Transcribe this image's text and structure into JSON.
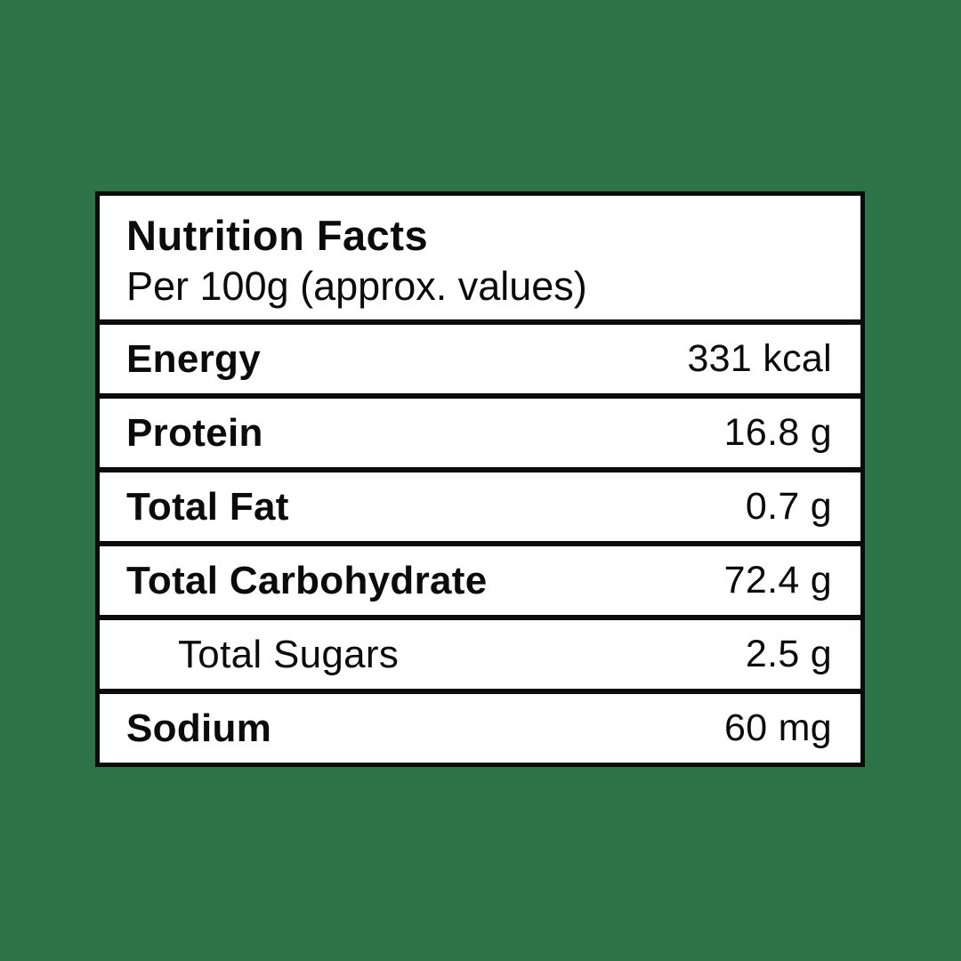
{
  "background_color": "#2d7347",
  "card": {
    "background_color": "#ffffff",
    "border_color": "#0b0b0b",
    "text_color": "#0b0b0b",
    "header": {
      "title": "Nutrition Facts",
      "subtitle": "Per 100g (approx. values)"
    },
    "rows": [
      {
        "label": "Energy",
        "value": "331 kcal",
        "bold_label": true,
        "indented": false
      },
      {
        "label": "Protein",
        "value": "16.8 g",
        "bold_label": true,
        "indented": false
      },
      {
        "label": "Total Fat",
        "value": "0.7 g",
        "bold_label": true,
        "indented": false
      },
      {
        "label": "Total Carbohydrate",
        "value": "72.4 g",
        "bold_label": true,
        "indented": false
      },
      {
        "label": "Total Sugars",
        "value": "2.5 g",
        "bold_label": false,
        "indented": true
      },
      {
        "label": "Sodium",
        "value": "60 mg",
        "bold_label": true,
        "indented": false
      }
    ]
  }
}
